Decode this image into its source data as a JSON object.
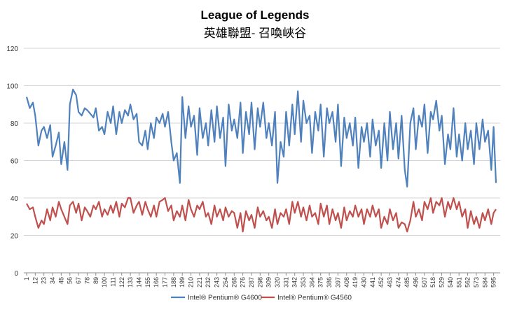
{
  "chart_data": {
    "type": "line",
    "title": "League of Legends",
    "subtitle": "英雄聯盟- 召喚峽谷",
    "xlabel": "",
    "ylabel": "",
    "ylim": [
      0,
      120
    ],
    "y_ticks": [
      0,
      20,
      40,
      60,
      80,
      100,
      120
    ],
    "x_ticks": [
      1,
      12,
      23,
      34,
      45,
      56,
      67,
      78,
      89,
      100,
      111,
      122,
      133,
      144,
      155,
      166,
      177,
      188,
      199,
      210,
      221,
      232,
      243,
      254,
      265,
      276,
      287,
      298,
      309,
      320,
      331,
      342,
      353,
      364,
      375,
      386,
      397,
      408,
      419,
      430,
      441,
      452,
      463,
      474,
      485,
      496,
      507,
      518,
      529,
      540,
      551,
      562,
      573,
      584,
      595
    ],
    "x_range": [
      1,
      598
    ],
    "grid": true,
    "legend_position": "bottom",
    "series": [
      {
        "name": "Intel® Pentium® G4600",
        "color": "#4F81BD",
        "x": [
          1,
          5,
          9,
          12,
          16,
          20,
          23,
          27,
          31,
          34,
          38,
          42,
          45,
          49,
          53,
          56,
          60,
          64,
          67,
          71,
          75,
          78,
          82,
          86,
          89,
          93,
          97,
          100,
          104,
          108,
          111,
          115,
          119,
          122,
          126,
          130,
          133,
          137,
          141,
          144,
          148,
          152,
          155,
          159,
          163,
          166,
          170,
          174,
          177,
          181,
          185,
          188,
          192,
          196,
          199,
          203,
          207,
          210,
          214,
          218,
          221,
          225,
          229,
          232,
          236,
          240,
          243,
          247,
          251,
          254,
          258,
          262,
          265,
          269,
          273,
          276,
          280,
          284,
          287,
          291,
          295,
          298,
          302,
          306,
          309,
          313,
          317,
          320,
          324,
          328,
          331,
          335,
          339,
          342,
          346,
          350,
          353,
          357,
          361,
          364,
          368,
          372,
          375,
          379,
          383,
          386,
          390,
          394,
          397,
          401,
          405,
          408,
          412,
          416,
          419,
          423,
          427,
          430,
          434,
          438,
          441,
          445,
          449,
          452,
          456,
          460,
          463,
          467,
          471,
          474,
          478,
          482,
          485,
          489,
          493,
          496,
          500,
          504,
          507,
          511,
          515,
          518,
          522,
          526,
          529,
          533,
          537,
          540,
          544,
          548,
          551,
          555,
          559,
          562,
          566,
          570,
          573,
          577,
          581,
          584,
          588,
          592,
          595,
          598
        ],
        "values": [
          94,
          88,
          91,
          84,
          68,
          76,
          78,
          72,
          79,
          62,
          68,
          75,
          58,
          70,
          55,
          90,
          98,
          95,
          86,
          84,
          88,
          87,
          85,
          83,
          88,
          76,
          78,
          74,
          86,
          80,
          89,
          74,
          86,
          80,
          87,
          84,
          90,
          82,
          85,
          70,
          68,
          76,
          66,
          80,
          72,
          83,
          80,
          85,
          78,
          86,
          70,
          60,
          64,
          48,
          94,
          72,
          89,
          78,
          84,
          63,
          88,
          72,
          80,
          68,
          87,
          70,
          89,
          72,
          83,
          57,
          90,
          76,
          82,
          72,
          91,
          64,
          86,
          74,
          91,
          66,
          88,
          78,
          91,
          72,
          80,
          68,
          86,
          48,
          70,
          62,
          86,
          68,
          90,
          74,
          97,
          70,
          92,
          80,
          84,
          64,
          86,
          76,
          90,
          62,
          88,
          80,
          86,
          70,
          90,
          57,
          83,
          72,
          80,
          68,
          83,
          56,
          78,
          70,
          80,
          62,
          82,
          68,
          76,
          56,
          80,
          60,
          86,
          66,
          80,
          61,
          84,
          55,
          46,
          80,
          88,
          66,
          84,
          78,
          90,
          64,
          86,
          82,
          92,
          76,
          84,
          58,
          74,
          66,
          88,
          62,
          74,
          60,
          80,
          66,
          76,
          58,
          80,
          66,
          82,
          70,
          76,
          55,
          78,
          48
        ],
        "note": "Approximate shape-preserving estimate, 3 points per tick interval"
      },
      {
        "name": "Intel® Pentium® G4560",
        "color": "#C0504D",
        "x": [
          1,
          5,
          9,
          12,
          16,
          20,
          23,
          27,
          31,
          34,
          38,
          42,
          45,
          49,
          53,
          56,
          60,
          64,
          67,
          71,
          75,
          78,
          82,
          86,
          89,
          93,
          97,
          100,
          104,
          108,
          111,
          115,
          119,
          122,
          126,
          130,
          133,
          137,
          141,
          144,
          148,
          152,
          155,
          159,
          163,
          166,
          170,
          174,
          177,
          181,
          185,
          188,
          192,
          196,
          199,
          203,
          207,
          210,
          214,
          218,
          221,
          225,
          229,
          232,
          236,
          240,
          243,
          247,
          251,
          254,
          258,
          262,
          265,
          269,
          273,
          276,
          280,
          284,
          287,
          291,
          295,
          298,
          302,
          306,
          309,
          313,
          317,
          320,
          324,
          328,
          331,
          335,
          339,
          342,
          346,
          350,
          353,
          357,
          361,
          364,
          368,
          372,
          375,
          379,
          383,
          386,
          390,
          394,
          397,
          401,
          405,
          408,
          412,
          416,
          419,
          423,
          427,
          430,
          434,
          438,
          441,
          445,
          449,
          452,
          456,
          460,
          463,
          467,
          471,
          474,
          478,
          482,
          485,
          489,
          493,
          496,
          500,
          504,
          507,
          511,
          515,
          518,
          522,
          526,
          529,
          533,
          537,
          540,
          544,
          548,
          551,
          555,
          559,
          562,
          566,
          570,
          573,
          577,
          581,
          584,
          588,
          592,
          595,
          598
        ],
        "values": [
          37,
          34,
          35,
          30,
          24,
          28,
          26,
          34,
          28,
          35,
          30,
          38,
          34,
          30,
          26,
          36,
          38,
          32,
          37,
          28,
          35,
          33,
          30,
          36,
          34,
          38,
          30,
          34,
          31,
          36,
          32,
          38,
          30,
          37,
          35,
          40,
          40,
          32,
          36,
          38,
          31,
          38,
          34,
          30,
          36,
          30,
          38,
          39,
          40,
          33,
          36,
          28,
          33,
          30,
          36,
          28,
          39,
          34,
          30,
          36,
          34,
          38,
          30,
          32,
          26,
          36,
          30,
          34,
          28,
          35,
          30,
          33,
          32,
          24,
          32,
          22,
          33,
          28,
          31,
          24,
          35,
          30,
          33,
          28,
          30,
          24,
          34,
          26,
          32,
          30,
          34,
          26,
          38,
          32,
          38,
          30,
          35,
          28,
          36,
          30,
          32,
          26,
          37,
          30,
          36,
          26,
          34,
          28,
          32,
          24,
          35,
          28,
          33,
          30,
          36,
          30,
          34,
          26,
          34,
          30,
          36,
          30,
          34,
          24,
          30,
          26,
          34,
          28,
          32,
          24,
          27,
          26,
          22,
          28,
          38,
          30,
          34,
          28,
          38,
          34,
          40,
          32,
          38,
          36,
          40,
          30,
          38,
          34,
          40,
          34,
          38,
          30,
          34,
          24,
          33,
          26,
          30,
          24,
          32,
          28,
          34,
          26,
          32,
          34
        ],
        "note": "Approximate shape-preserving estimate, 3 points per tick interval"
      }
    ]
  }
}
